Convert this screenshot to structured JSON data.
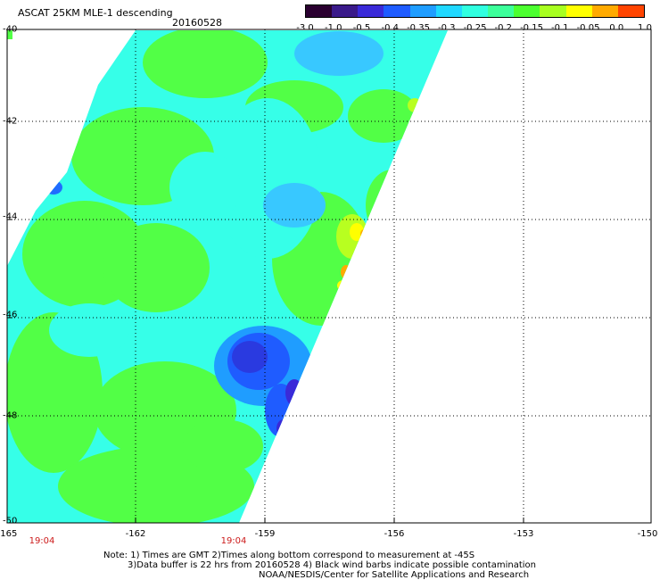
{
  "header": {
    "title": "ASCAT 25KM MLE-1 descending",
    "date": "20160528"
  },
  "colorbar": {
    "labels": [
      "-3.0",
      "-1.0",
      "-0.5",
      "-0.4",
      "-0.35",
      "-0.3",
      "-0.25",
      "-0.2",
      "-0.15",
      "-0.1",
      "-0.05",
      "0.0",
      "1.0"
    ],
    "colors": [
      "#2a0030",
      "#3a1a8a",
      "#3a2ad8",
      "#1f5cff",
      "#1f9dff",
      "#20d8ff",
      "#30ffe0",
      "#3cff9a",
      "#4cff30",
      "#a8ff20",
      "#ffff00",
      "#ffaa00",
      "#ff4400"
    ]
  },
  "axes": {
    "lon_labels": [
      "-165",
      "-162",
      "-159",
      "-156",
      "-153",
      "-150"
    ],
    "lat_labels": [
      "-40",
      "-42",
      "-44",
      "-46",
      "-48",
      "-50"
    ],
    "time_labels": [
      "19:04",
      "19:04"
    ]
  },
  "notes": {
    "line1": "Note: 1) Times are GMT 2)Times along bottom correspond to measurement at -45S",
    "line2": "3)Data buffer is 22 hrs from 20160528 4) Black wind barbs indicate possible contamination",
    "line3": "NOAA/NESDIS/Center for Satellite Applications and Research"
  }
}
